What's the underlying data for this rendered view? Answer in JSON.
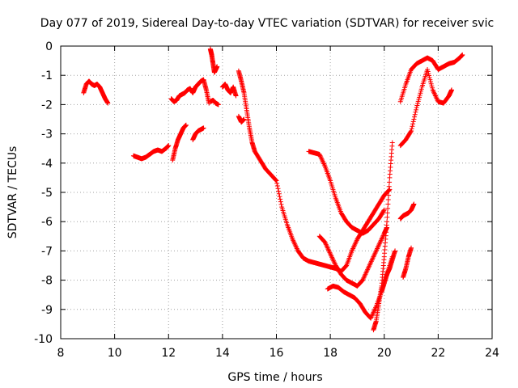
{
  "chart_data": {
    "type": "scatter",
    "title": "Day 077 of 2019, Sidereal Day-to-day VTEC variation (SDTVAR) for receiver svic",
    "xlabel": "GPS time / hours",
    "ylabel": "SDTVAR / TECUs",
    "xlim": [
      8,
      24
    ],
    "ylim": [
      -10,
      0
    ],
    "xticks": [
      8,
      10,
      12,
      14,
      16,
      18,
      20,
      22,
      24
    ],
    "yticks": [
      0,
      -1,
      -2,
      -3,
      -4,
      -5,
      -6,
      -7,
      -8,
      -9,
      -10
    ],
    "grid": true,
    "marker": "+",
    "color": "#ff0000",
    "series": [
      {
        "x": [
          8.85,
          8.95,
          9.05,
          9.15,
          9.25,
          9.35,
          9.45,
          9.55,
          9.65,
          9.75
        ],
        "y": [
          -1.6,
          -1.3,
          -1.2,
          -1.3,
          -1.35,
          -1.3,
          -1.4,
          -1.6,
          -1.8,
          -1.95
        ]
      },
      {
        "x": [
          10.7,
          10.85,
          11.0,
          11.15,
          11.3,
          11.45,
          11.6,
          11.75,
          11.9,
          12.0
        ],
        "y": [
          -3.75,
          -3.8,
          -3.85,
          -3.8,
          -3.7,
          -3.6,
          -3.55,
          -3.6,
          -3.5,
          -3.4
        ]
      },
      {
        "x": [
          12.1,
          12.2,
          12.3,
          12.4,
          12.5,
          12.6,
          12.7,
          12.8,
          12.9,
          13.0,
          13.1,
          13.2,
          13.3,
          13.4,
          13.5
        ],
        "y": [
          -1.8,
          -1.9,
          -1.85,
          -1.7,
          -1.65,
          -1.6,
          -1.5,
          -1.45,
          -1.6,
          -1.4,
          -1.3,
          -1.2,
          -1.15,
          -1.5,
          -1.95
        ]
      },
      {
        "x": [
          12.15,
          12.25,
          12.35,
          12.45,
          12.55,
          12.65
        ],
        "y": [
          -3.9,
          -3.5,
          -3.2,
          -3.0,
          -2.8,
          -2.7
        ]
      },
      {
        "x": [
          12.9,
          13.0,
          13.1,
          13.2,
          13.3
        ],
        "y": [
          -3.2,
          -3.0,
          -2.9,
          -2.85,
          -2.8
        ]
      },
      {
        "x": [
          13.55,
          13.6,
          13.65,
          13.7,
          13.75,
          13.8
        ],
        "y": [
          -0.1,
          -0.3,
          -0.6,
          -0.9,
          -0.8,
          -0.7
        ]
      },
      {
        "x": [
          13.55,
          13.65,
          13.75,
          13.85
        ],
        "y": [
          -1.9,
          -1.85,
          -1.95,
          -2.0
        ]
      },
      {
        "x": [
          14.0,
          14.1,
          14.2,
          14.3,
          14.4,
          14.5
        ],
        "y": [
          -1.4,
          -1.3,
          -1.5,
          -1.6,
          -1.4,
          -1.7
        ]
      },
      {
        "x": [
          14.6,
          14.7,
          14.8,
          14.9,
          15.0,
          15.1,
          15.2,
          15.4,
          15.6,
          15.8,
          16.0,
          16.2,
          16.4,
          16.6,
          16.8,
          17.0,
          17.2,
          17.4,
          17.6,
          17.8,
          18.0,
          18.2,
          18.4,
          18.6,
          18.8,
          19.0,
          19.2,
          19.4,
          19.6,
          19.8,
          20.0,
          20.2
        ],
        "y": [
          -0.85,
          -1.2,
          -1.6,
          -2.2,
          -2.8,
          -3.3,
          -3.6,
          -3.9,
          -4.2,
          -4.4,
          -4.6,
          -5.5,
          -6.1,
          -6.6,
          -7.0,
          -7.25,
          -7.35,
          -7.4,
          -7.45,
          -7.5,
          -7.55,
          -7.6,
          -7.7,
          -7.5,
          -7.0,
          -6.6,
          -6.3,
          -6.0,
          -5.7,
          -5.4,
          -5.1,
          -4.9
        ]
      },
      {
        "x": [
          14.6,
          14.7,
          14.8
        ],
        "y": [
          -2.4,
          -2.6,
          -2.5
        ]
      },
      {
        "x": [
          17.2,
          17.4,
          17.6,
          17.8,
          18.0,
          18.2,
          18.4,
          18.6,
          18.8,
          19.0,
          19.2,
          19.4,
          19.6,
          19.8,
          20.0
        ],
        "y": [
          -3.6,
          -3.65,
          -3.7,
          -4.1,
          -4.6,
          -5.2,
          -5.7,
          -6.0,
          -6.2,
          -6.3,
          -6.4,
          -6.3,
          -6.1,
          -5.9,
          -5.6
        ]
      },
      {
        "x": [
          17.6,
          17.8,
          18.0,
          18.2,
          18.4,
          18.6,
          18.8,
          19.0,
          19.2,
          19.4,
          19.6,
          19.8,
          20.0,
          20.1
        ],
        "y": [
          -6.5,
          -6.7,
          -7.1,
          -7.5,
          -7.8,
          -8.0,
          -8.1,
          -8.2,
          -8.0,
          -7.6,
          -7.2,
          -6.8,
          -6.4,
          -6.2
        ]
      },
      {
        "x": [
          17.9,
          18.1,
          18.3,
          18.5,
          18.7,
          18.9,
          19.1,
          19.3,
          19.5,
          19.7,
          19.9,
          20.1,
          20.3
        ],
        "y": [
          -8.3,
          -8.2,
          -8.25,
          -8.4,
          -8.5,
          -8.6,
          -8.8,
          -9.1,
          -9.3,
          -8.9,
          -8.4,
          -7.8,
          -7.2
        ]
      },
      {
        "x": [
          19.6,
          19.7,
          19.8,
          19.9,
          20.0,
          20.1,
          20.2,
          20.3
        ],
        "y": [
          -9.7,
          -9.4,
          -8.8,
          -8.2,
          -7.2,
          -6.0,
          -4.5,
          -3.3
        ]
      },
      {
        "x": [
          19.9,
          20.0,
          20.1,
          20.2,
          20.3,
          20.4
        ],
        "y": [
          -8.4,
          -8.1,
          -7.8,
          -7.6,
          -7.3,
          -7.0
        ]
      },
      {
        "x": [
          20.6,
          20.7,
          20.8,
          20.9,
          21.0,
          21.1
        ],
        "y": [
          -5.9,
          -5.8,
          -5.75,
          -5.7,
          -5.6,
          -5.4
        ]
      },
      {
        "x": [
          20.7,
          20.8,
          20.9,
          21.0
        ],
        "y": [
          -7.9,
          -7.6,
          -7.2,
          -6.9
        ]
      },
      {
        "x": [
          20.6,
          20.8,
          21.0,
          21.2,
          21.4,
          21.6,
          21.8,
          22.0,
          22.2,
          22.4,
          22.6,
          22.8,
          22.9
        ],
        "y": [
          -1.9,
          -1.3,
          -0.8,
          -0.6,
          -0.5,
          -0.4,
          -0.5,
          -0.8,
          -0.7,
          -0.6,
          -0.55,
          -0.4,
          -0.3
        ]
      },
      {
        "x": [
          20.6,
          20.8,
          21.0,
          21.2,
          21.4,
          21.6,
          21.8,
          22.0,
          22.2,
          22.4,
          22.5
        ],
        "y": [
          -3.4,
          -3.2,
          -2.9,
          -2.1,
          -1.4,
          -0.8,
          -1.5,
          -1.9,
          -1.95,
          -1.7,
          -1.5
        ]
      }
    ]
  }
}
